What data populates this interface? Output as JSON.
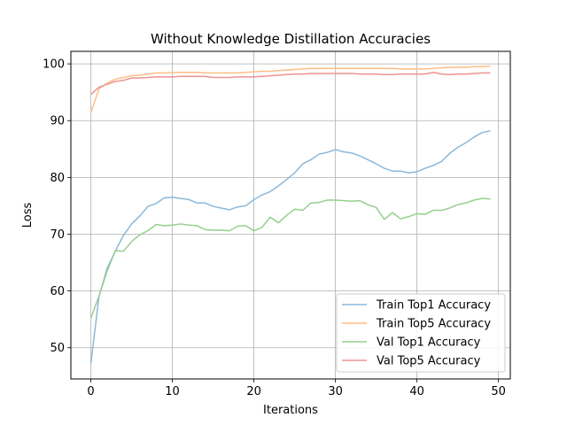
{
  "chart_data": {
    "type": "line",
    "title": "Without Knowledge Distillation Accuracies",
    "xlabel": "Iterations",
    "ylabel": "Loss",
    "xlim": [
      -2.45,
      51.45
    ],
    "ylim": [
      44.5,
      102.2
    ],
    "xticks": [
      0,
      10,
      20,
      30,
      40,
      50
    ],
    "yticks": [
      50,
      60,
      70,
      80,
      90,
      100
    ],
    "grid": true,
    "legend_position": "lower-right",
    "x": [
      0,
      1,
      2,
      3,
      4,
      5,
      6,
      7,
      8,
      9,
      10,
      11,
      12,
      13,
      14,
      15,
      16,
      17,
      18,
      19,
      20,
      21,
      22,
      23,
      24,
      25,
      26,
      27,
      28,
      29,
      30,
      31,
      32,
      33,
      34,
      35,
      36,
      37,
      38,
      39,
      40,
      41,
      42,
      43,
      44,
      45,
      46,
      47,
      48,
      49
    ],
    "series": [
      {
        "name": "Train Top1 Accuracy",
        "color": "#8bb8d9",
        "values": [
          47.2,
          59.0,
          64.0,
          67.0,
          69.8,
          71.8,
          73.2,
          74.9,
          75.4,
          76.4,
          76.5,
          76.3,
          76.1,
          75.5,
          75.5,
          74.9,
          74.6,
          74.3,
          74.8,
          75.0,
          76.1,
          76.9,
          77.5,
          78.5,
          79.6,
          80.8,
          82.4,
          83.1,
          84.1,
          84.4,
          84.9,
          84.5,
          84.3,
          83.8,
          83.1,
          82.4,
          81.6,
          81.1,
          81.1,
          80.8,
          81.0,
          81.6,
          82.1,
          82.8,
          84.2,
          85.3,
          86.1,
          87.1,
          87.9,
          88.2
        ]
      },
      {
        "name": "Train Top5 Accuracy",
        "color": "#ffbe86",
        "values": [
          91.4,
          95.6,
          96.6,
          97.3,
          97.6,
          97.9,
          98.0,
          98.2,
          98.4,
          98.4,
          98.5,
          98.5,
          98.5,
          98.5,
          98.4,
          98.4,
          98.4,
          98.4,
          98.4,
          98.5,
          98.6,
          98.7,
          98.7,
          98.8,
          98.9,
          99.0,
          99.1,
          99.2,
          99.2,
          99.2,
          99.2,
          99.2,
          99.2,
          99.2,
          99.2,
          99.2,
          99.2,
          99.2,
          99.1,
          99.1,
          99.1,
          99.1,
          99.2,
          99.3,
          99.4,
          99.4,
          99.4,
          99.5,
          99.5,
          99.6
        ]
      },
      {
        "name": "Val Top1 Accuracy",
        "color": "#96cf8e",
        "values": [
          55.2,
          59.1,
          63.5,
          67.1,
          67.0,
          68.7,
          69.9,
          70.6,
          71.7,
          71.5,
          71.6,
          71.8,
          71.6,
          71.5,
          70.8,
          70.7,
          70.7,
          70.6,
          71.4,
          71.5,
          70.6,
          71.2,
          73.0,
          72.0,
          73.3,
          74.4,
          74.2,
          75.5,
          75.6,
          76.0,
          76.0,
          75.9,
          75.8,
          75.9,
          75.2,
          74.7,
          72.6,
          73.8,
          72.7,
          73.1,
          73.6,
          73.5,
          74.2,
          74.2,
          74.6,
          75.2,
          75.5,
          76.0,
          76.3,
          76.2
        ]
      },
      {
        "name": "Val Top5 Accuracy",
        "color": "#ec9393",
        "values": [
          94.6,
          95.9,
          96.4,
          96.9,
          97.1,
          97.5,
          97.5,
          97.6,
          97.7,
          97.7,
          97.7,
          97.8,
          97.8,
          97.8,
          97.8,
          97.6,
          97.6,
          97.6,
          97.7,
          97.7,
          97.7,
          97.8,
          97.9,
          98.0,
          98.1,
          98.2,
          98.2,
          98.3,
          98.3,
          98.3,
          98.3,
          98.3,
          98.3,
          98.2,
          98.2,
          98.2,
          98.1,
          98.1,
          98.2,
          98.2,
          98.2,
          98.2,
          98.5,
          98.2,
          98.1,
          98.2,
          98.2,
          98.3,
          98.4,
          98.4
        ]
      }
    ]
  }
}
